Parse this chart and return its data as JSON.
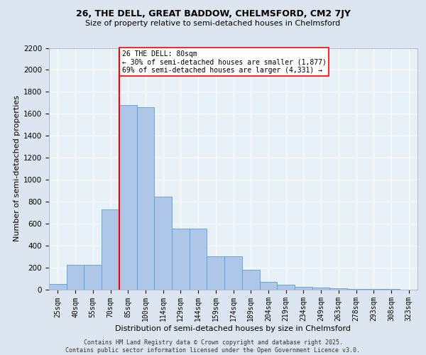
{
  "title1": "26, THE DELL, GREAT BADDOW, CHELMSFORD, CM2 7JY",
  "title2": "Size of property relative to semi-detached houses in Chelmsford",
  "xlabel": "Distribution of semi-detached houses by size in Chelmsford",
  "ylabel": "Number of semi-detached properties",
  "categories": [
    "25sqm",
    "40sqm",
    "55sqm",
    "70sqm",
    "85sqm",
    "100sqm",
    "114sqm",
    "129sqm",
    "144sqm",
    "159sqm",
    "174sqm",
    "189sqm",
    "204sqm",
    "219sqm",
    "234sqm",
    "249sqm",
    "263sqm",
    "278sqm",
    "293sqm",
    "308sqm",
    "323sqm"
  ],
  "values": [
    50,
    225,
    225,
    725,
    1680,
    1660,
    845,
    555,
    555,
    300,
    300,
    180,
    65,
    40,
    25,
    15,
    10,
    5,
    3,
    2,
    0
  ],
  "bar_color": "#aec6e8",
  "bar_edge_color": "#5a9fd4",
  "vline_color": "red",
  "vline_pos": 4.0,
  "annotation_text": "26 THE DELL: 80sqm\n← 30% of semi-detached houses are smaller (1,877)\n69% of semi-detached houses are larger (4,331) →",
  "annotation_box_color": "white",
  "annotation_box_edge": "red",
  "footer": "Contains HM Land Registry data © Crown copyright and database right 2025.\nContains public sector information licensed under the Open Government Licence v3.0.",
  "ylim": [
    0,
    2200
  ],
  "yticks": [
    0,
    200,
    400,
    600,
    800,
    1000,
    1200,
    1400,
    1600,
    1800,
    2000,
    2200
  ],
  "background_color": "#dde6f0",
  "plot_background": "#e8f0f8",
  "title1_fontsize": 9,
  "title2_fontsize": 8,
  "tick_fontsize": 7,
  "ylabel_fontsize": 8,
  "xlabel_fontsize": 8,
  "footer_fontsize": 6,
  "annot_fontsize": 7
}
